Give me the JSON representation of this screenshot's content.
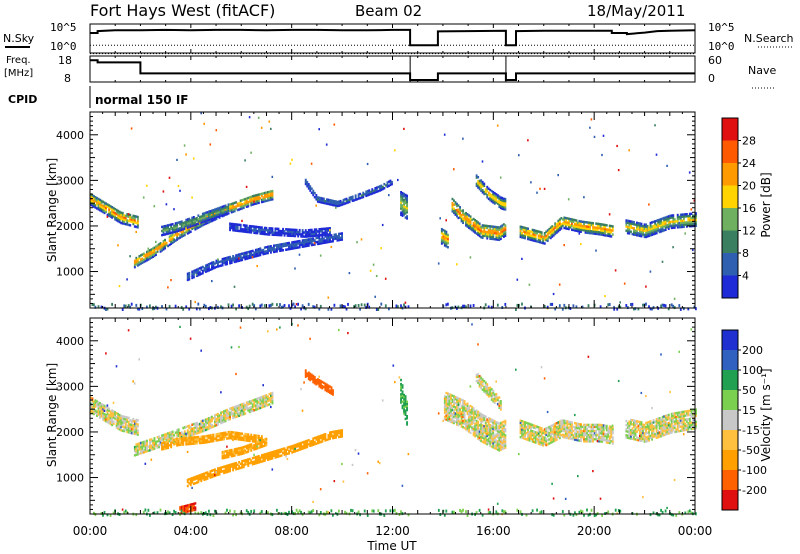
{
  "header": {
    "station": "Fort Hays West (fitACF)",
    "beam": "Beam 02",
    "date": "18/May/2011"
  },
  "params": {
    "nsky_label": "N.Sky",
    "nsearch_label": "N.Search",
    "log_top": "10^5",
    "log_bottom": "10^0",
    "freq_label_1": "Freq.",
    "freq_label_2": "[MHz]",
    "freq_ticks": [
      "18",
      "8"
    ],
    "nave_label": "Nave",
    "nave_ticks": [
      "60",
      "0"
    ],
    "cpid_label": "CPID",
    "cpid_value": "normal 150 IF"
  },
  "chart_data": [
    {
      "type": "line",
      "name": "noise",
      "xlim": [
        0,
        24
      ],
      "series": [
        {
          "name": "N.Sky",
          "style": "solid",
          "x": [
            0,
            0.3,
            0.3,
            1,
            2,
            3,
            4,
            5,
            6,
            7,
            8,
            9,
            10,
            11,
            12,
            12.7,
            12.7,
            13.8,
            13.8,
            15,
            16.5,
            16.5,
            16.9,
            16.9,
            18,
            19,
            20,
            20.7,
            20.7,
            21.3,
            21.3,
            22,
            22.5,
            23,
            24
          ],
          "y": [
            4.2,
            4.2,
            4.7,
            4.9,
            4.9,
            5.0,
            4.9,
            5.0,
            5.0,
            4.9,
            5.0,
            5.0,
            4.9,
            4.9,
            5.0,
            5.0,
            1.0,
            1.0,
            4.6,
            4.7,
            4.8,
            1.0,
            1.0,
            4.7,
            4.8,
            4.8,
            4.8,
            4.8,
            4.2,
            4.2,
            3.9,
            4.3,
            4.7,
            4.8,
            4.9
          ]
        },
        {
          "name": "N.Search",
          "style": "dotted",
          "x": [
            0,
            24
          ],
          "y": [
            1.0,
            1.0
          ]
        }
      ]
    },
    {
      "type": "line",
      "name": "frequency-nave",
      "xlim": [
        0,
        24
      ],
      "series": [
        {
          "name": "Freq",
          "style": "solid",
          "x": [
            0,
            0.3,
            0.3,
            2,
            2,
            12.7,
            12.7,
            13.8,
            13.8,
            14.2,
            14.2,
            16.5,
            16.5,
            16.9,
            16.9,
            24
          ],
          "y": [
            17,
            17,
            16,
            16,
            11,
            11,
            8,
            8,
            11,
            11,
            11,
            11,
            8,
            8,
            11,
            11
          ]
        },
        {
          "name": "Nave",
          "style": "dotted",
          "x": [
            0,
            24
          ],
          "y": [
            20,
            20
          ]
        }
      ]
    },
    {
      "type": "heatmap",
      "name": "power",
      "xlabel": "",
      "ylabel": "Slant Range [km]",
      "xlim": [
        0,
        24
      ],
      "ylim": [
        200,
        4500
      ],
      "yticks": [
        1000,
        2000,
        3000,
        4000
      ],
      "colorbar_label": "Power [dB]",
      "colorbar_ticks": [
        "4",
        "8",
        "12",
        "16",
        "20",
        "24",
        "28"
      ],
      "colors": [
        "#1f2bd6",
        "#2f5fb0",
        "#3a8060",
        "#6fb060",
        "#ffd400",
        "#ff9a00",
        "#ff5a00",
        "#e01010"
      ],
      "bands": [
        {
          "t": [
            0,
            0.6,
            1.2,
            1.9
          ],
          "r": [
            2600,
            2400,
            2200,
            2100
          ],
          "w": 260,
          "peak": 24
        },
        {
          "t": [
            1.7,
            2.5,
            3.5,
            4.5,
            5.5,
            6.5,
            7.2
          ],
          "r": [
            1200,
            1450,
            1850,
            2150,
            2400,
            2600,
            2700
          ],
          "w": 220,
          "peak": 26
        },
        {
          "t": [
            2.8,
            3.5,
            4.5,
            5.5
          ],
          "r": [
            1900,
            2000,
            2200,
            2400
          ],
          "w": 200,
          "peak": 14
        },
        {
          "t": [
            3.8,
            5,
            7,
            9,
            10
          ],
          "r": [
            900,
            1200,
            1500,
            1700,
            1800
          ],
          "w": 180,
          "peak": 6
        },
        {
          "t": [
            5.5,
            7,
            8.5,
            9.5
          ],
          "r": [
            2000,
            1900,
            1850,
            1900
          ],
          "w": 160,
          "peak": 5
        },
        {
          "t": [
            8.5,
            9,
            9.8,
            10.8,
            11.5,
            12
          ],
          "r": [
            3000,
            2600,
            2500,
            2700,
            2850,
            3000
          ],
          "w": 120,
          "peak": 9
        },
        {
          "t": [
            12.3,
            12.6
          ],
          "r": [
            2500,
            2400
          ],
          "w": 500,
          "peak": 18
        },
        {
          "t": [
            13.9,
            14.2
          ],
          "r": [
            1800,
            1700
          ],
          "w": 350,
          "peak": 24
        },
        {
          "t": [
            14.3,
            14.8,
            15.5,
            16.2,
            16.6
          ],
          "r": [
            2500,
            2200,
            1900,
            1850,
            2000
          ],
          "w": 300,
          "peak": 26
        },
        {
          "t": [
            15.3,
            15.8,
            16.3,
            16.7
          ],
          "r": [
            3000,
            2700,
            2500,
            2450
          ],
          "w": 230,
          "peak": 22
        },
        {
          "t": [
            17,
            18,
            18.7,
            19.5,
            20.2,
            20.7
          ],
          "r": [
            1900,
            1750,
            2100,
            2000,
            1950,
            1900
          ],
          "w": 260,
          "peak": 24
        },
        {
          "t": [
            21.2,
            22,
            23,
            24
          ],
          "r": [
            2000,
            1900,
            2100,
            2150
          ],
          "w": 280,
          "peak": 20
        }
      ]
    },
    {
      "type": "heatmap",
      "name": "velocity",
      "xlabel": "Time UT",
      "ylabel": "Slant Range [km]",
      "xlim": [
        0,
        24
      ],
      "ylim": [
        200,
        4500
      ],
      "xticks": [
        "00:00",
        "04:00",
        "08:00",
        "12:00",
        "16:00",
        "20:00",
        "00:00"
      ],
      "yticks": [
        1000,
        2000,
        3000,
        4000
      ],
      "colorbar_label": "Velocity [m s⁻¹]",
      "colorbar_ticks": [
        "200",
        "100",
        "50",
        "15",
        "-15",
        "-50",
        "-100",
        "-200"
      ],
      "colors": [
        "#2030d0",
        "#3060c0",
        "#20a050",
        "#7cd050",
        "#c8c8c8",
        "#ffc040",
        "#ffa000",
        "#ff6000",
        "#e01010"
      ],
      "bands": [
        {
          "t": [
            0,
            0.6,
            1.2,
            1.9
          ],
          "r": [
            2600,
            2400,
            2200,
            2100
          ],
          "w": 320,
          "v": 0
        },
        {
          "t": [
            1.7,
            2.5,
            3.5,
            4.5,
            5.5,
            6.5,
            7.2
          ],
          "r": [
            1600,
            1750,
            1950,
            2150,
            2400,
            2600,
            2750
          ],
          "w": 230,
          "v": 0
        },
        {
          "t": [
            2.8,
            3.5,
            4.5,
            5.5,
            6.8
          ],
          "r": [
            1700,
            1800,
            1850,
            1950,
            1850
          ],
          "w": 160,
          "v": -40
        },
        {
          "t": [
            3.8,
            5,
            6.5,
            8,
            9.5,
            10
          ],
          "r": [
            900,
            1150,
            1400,
            1650,
            1950,
            2000
          ],
          "w": 180,
          "v": -60
        },
        {
          "t": [
            5.2,
            6,
            7
          ],
          "r": [
            1500,
            1600,
            1800
          ],
          "w": 150,
          "v": -40
        },
        {
          "t": [
            3.5,
            4.2
          ],
          "r": [
            300,
            400
          ],
          "w": 180,
          "v": -150
        },
        {
          "t": [
            8.5,
            9,
            9.6
          ],
          "r": [
            3300,
            3100,
            2900
          ],
          "w": 150,
          "v": -120
        },
        {
          "t": [
            12.3,
            12.6
          ],
          "r": [
            2900,
            2300
          ],
          "w": 500,
          "v": 40
        },
        {
          "t": [
            14,
            14.8,
            15.5,
            16.2,
            16.6
          ],
          "r": [
            2600,
            2400,
            2100,
            1900,
            2000
          ],
          "w": 600,
          "v": 0
        },
        {
          "t": [
            15.3,
            15.8,
            16.3
          ],
          "r": [
            3200,
            2900,
            2600
          ],
          "w": 250,
          "v": 0
        },
        {
          "t": [
            17,
            18,
            18.7,
            19.5,
            20.2,
            20.7
          ],
          "r": [
            2100,
            1900,
            2100,
            2000,
            2000,
            1950
          ],
          "w": 400,
          "v": 0
        },
        {
          "t": [
            21.2,
            22,
            23,
            24
          ],
          "r": [
            2100,
            2000,
            2200,
            2300
          ],
          "w": 420,
          "v": 0
        }
      ]
    }
  ]
}
